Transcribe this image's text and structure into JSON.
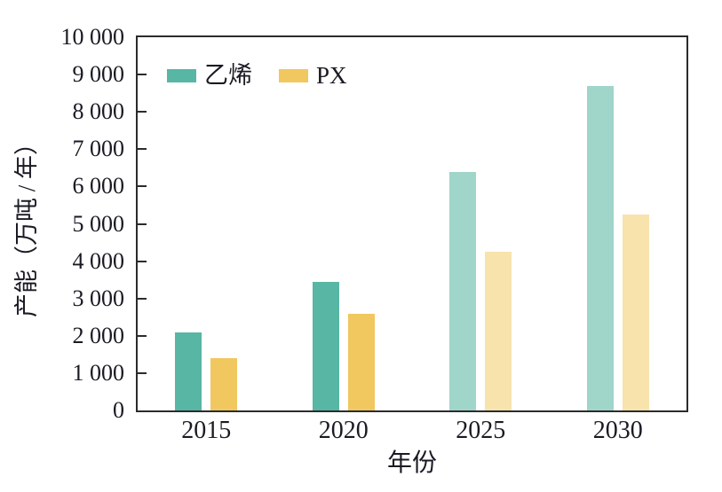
{
  "chart_data": {
    "type": "bar",
    "title": "",
    "xlabel": "年份",
    "ylabel": "产能（万吨 / 年）",
    "categories": [
      "2015",
      "2020",
      "2025",
      "2030"
    ],
    "series": [
      {
        "name": "乙烯",
        "values": [
          2100,
          3450,
          6400,
          8700
        ],
        "color": "#57b6a4",
        "forecast_color": "#a0d5ca"
      },
      {
        "name": "PX",
        "values": [
          1400,
          2600,
          4250,
          5250
        ],
        "color": "#f1c75f",
        "forecast_color": "#f8e3ad"
      }
    ],
    "forecast_start_index": 2,
    "ylim": [
      0,
      10000
    ],
    "ytick_step": 1000,
    "ytick_labels": [
      "0",
      "1 000",
      "2 000",
      "3 000",
      "4 000",
      "5 000",
      "6 000",
      "7 000",
      "8 000",
      "9 000",
      "10 000"
    ],
    "legend_position": "top-left",
    "grid": false,
    "axis_color": "#2b2b2b"
  }
}
